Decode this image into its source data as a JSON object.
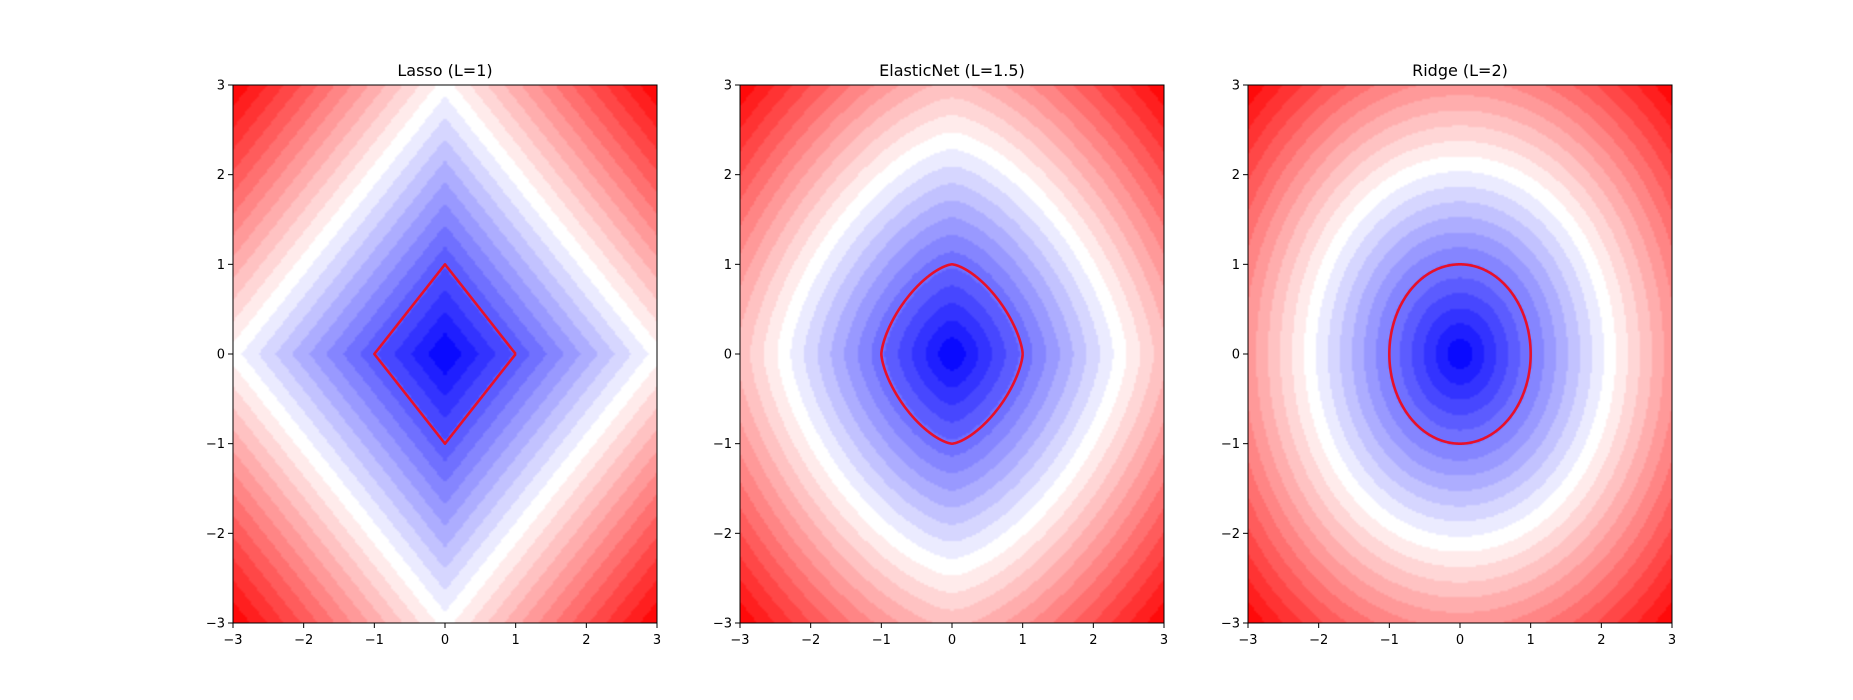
{
  "chart_data": [
    {
      "type": "heatmap",
      "title": "Lasso (L=1)",
      "norm_p": 1,
      "xlim": [
        -3,
        3
      ],
      "ylim": [
        -3,
        3
      ],
      "xticks": [
        -3,
        -2,
        -1,
        0,
        1,
        2,
        3
      ],
      "yticks": [
        -3,
        -2,
        -1,
        0,
        1,
        2,
        3
      ],
      "xtick_labels": [
        "−3",
        "−2",
        "−1",
        "0",
        "1",
        "2",
        "3"
      ],
      "ytick_labels": [
        "−3",
        "−2",
        "−1",
        "0",
        "1",
        "2",
        "3"
      ],
      "contour_levels": 25,
      "colormap": "bwr",
      "unit_ball_level": 1,
      "unit_ball_color": "#e8102a"
    },
    {
      "type": "heatmap",
      "title": "ElasticNet (L=1.5)",
      "norm_p": 1.5,
      "xlim": [
        -3,
        3
      ],
      "ylim": [
        -3,
        3
      ],
      "xticks": [
        -3,
        -2,
        -1,
        0,
        1,
        2,
        3
      ],
      "yticks": [
        -3,
        -2,
        -1,
        0,
        1,
        2,
        3
      ],
      "xtick_labels": [
        "−3",
        "−2",
        "−1",
        "0",
        "1",
        "2",
        "3"
      ],
      "ytick_labels": [
        "−3",
        "−2",
        "−1",
        "0",
        "1",
        "2",
        "3"
      ],
      "contour_levels": 25,
      "colormap": "bwr",
      "unit_ball_level": 1,
      "unit_ball_color": "#e8102a"
    },
    {
      "type": "heatmap",
      "title": "Ridge (L=2)",
      "norm_p": 2,
      "xlim": [
        -3,
        3
      ],
      "ylim": [
        -3,
        3
      ],
      "xticks": [
        -3,
        -2,
        -1,
        0,
        1,
        2,
        3
      ],
      "yticks": [
        -3,
        -2,
        -1,
        0,
        1,
        2,
        3
      ],
      "xtick_labels": [
        "−3",
        "−2",
        "−1",
        "0",
        "1",
        "2",
        "3"
      ],
      "ytick_labels": [
        "−3",
        "−2",
        "−1",
        "0",
        "1",
        "2",
        "3"
      ],
      "contour_levels": 25,
      "colormap": "bwr",
      "unit_ball_level": 1,
      "unit_ball_color": "#e8102a"
    }
  ]
}
